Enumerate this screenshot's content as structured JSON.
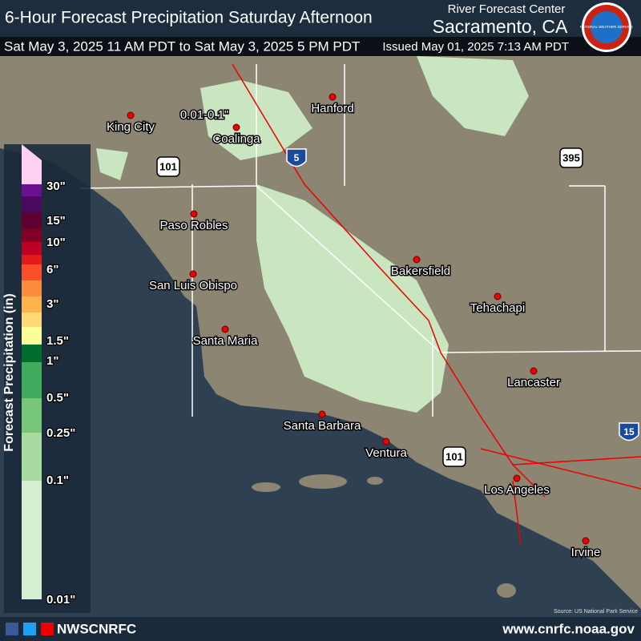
{
  "header": {
    "title": "6-Hour Forecast Precipitation Saturday Afternoon",
    "center": "River Forecast Center",
    "location": "Sacramento, CA",
    "valid_period": "Sat May 3, 2025 11 AM PDT to Sat May 3, 2025 5 PM PDT",
    "issued": "Issued May 01, 2025 7:13 AM PDT",
    "logo_text": "NATIONAL WEATHER SERVICE"
  },
  "legend": {
    "title": "Forecast Precipitation (in)",
    "labels": [
      "30\"",
      "15\"",
      "10\"",
      "6\"",
      "3\"",
      "1.5\"",
      "1\"",
      "0.5\"",
      "0.25\"",
      "0.1\"",
      "0.01\""
    ],
    "colors": [
      "#ffd1f0",
      "#6a1090",
      "#4a0a60",
      "#5e0030",
      "#800026",
      "#bd0026",
      "#e31a1c",
      "#fc4e2a",
      "#fd8d3c",
      "#feb24c",
      "#fed976",
      "#ffff99",
      "#006d2c",
      "#41ab5d",
      "#78c679",
      "#a8dba0",
      "#d4efcf"
    ]
  },
  "map": {
    "annotation": "0.01-0.1\"",
    "cities": [
      "King City",
      "Coalinga",
      "Hanford",
      "Paso Robles",
      "San Luis Obispo",
      "Santa Maria",
      "Bakersfield",
      "Tehachapi",
      "Lancaster",
      "Santa Barbara",
      "Ventura",
      "Los Angeles",
      "Irvine"
    ],
    "highways": [
      "101",
      "5",
      "395",
      "101",
      "15"
    ],
    "source": "Source: US National Park Service"
  },
  "footer": {
    "social": "NWSCNRFC",
    "url": "www.cnrfc.noaa.gov"
  }
}
